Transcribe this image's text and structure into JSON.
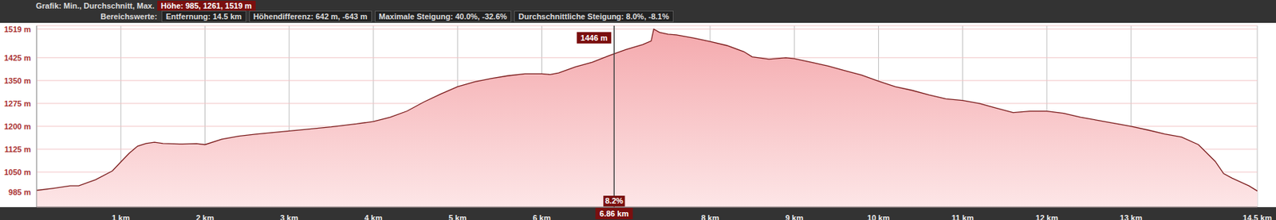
{
  "header": {
    "line1": [
      "Grafik: Min., Durchschnitt, Max.",
      "Höhe: 985, 1261, 1519 m"
    ],
    "line2": [
      "Bereichswerte:",
      "Entfernung: 14.5 km",
      "Höhendifferenz: 642 m, -643 m",
      "Maximale Steigung: 40.0%, -32.6%",
      "Durchschnittliche Steigung: 8.0%, -8.1%"
    ]
  },
  "chart_data": {
    "type": "area",
    "color": "#7a1a1a",
    "grid": true,
    "x": [
      0,
      0.2,
      0.4,
      0.5,
      0.7,
      0.9,
      1.0,
      1.1,
      1.2,
      1.3,
      1.4,
      1.5,
      1.7,
      1.9,
      2.0,
      2.2,
      2.4,
      2.6,
      3.0,
      3.2,
      3.5,
      3.8,
      4.0,
      4.2,
      4.4,
      4.6,
      4.8,
      5.0,
      5.2,
      5.4,
      5.6,
      5.8,
      6.0,
      6.1,
      6.2,
      6.4,
      6.6,
      6.8,
      7.0,
      7.2,
      7.3,
      7.33,
      7.4,
      7.5,
      7.6,
      7.8,
      8.0,
      8.2,
      8.4,
      8.5,
      8.7,
      8.9,
      9.0,
      9.2,
      9.4,
      9.6,
      9.8,
      10.0,
      10.2,
      10.4,
      10.6,
      10.8,
      11.0,
      11.2,
      11.4,
      11.6,
      11.8,
      12.0,
      12.2,
      12.4,
      12.6,
      12.8,
      13.0,
      13.2,
      13.4,
      13.6,
      13.8,
      14.0,
      14.1,
      14.2,
      14.4,
      14.5
    ],
    "values": [
      990,
      997,
      1005,
      1005,
      1025,
      1054,
      1083,
      1112,
      1135,
      1144,
      1148,
      1144,
      1142,
      1143,
      1140,
      1158,
      1168,
      1174,
      1185,
      1190,
      1198,
      1208,
      1216,
      1230,
      1250,
      1280,
      1306,
      1330,
      1346,
      1357,
      1366,
      1372,
      1372,
      1370,
      1375,
      1395,
      1410,
      1432,
      1452,
      1468,
      1480,
      1519,
      1508,
      1502,
      1500,
      1490,
      1478,
      1465,
      1445,
      1428,
      1420,
      1425,
      1422,
      1410,
      1398,
      1383,
      1368,
      1348,
      1330,
      1318,
      1303,
      1290,
      1285,
      1275,
      1260,
      1245,
      1250,
      1250,
      1243,
      1230,
      1220,
      1210,
      1200,
      1188,
      1175,
      1165,
      1140,
      1085,
      1045,
      1030,
      1005,
      988
    ],
    "xlim": [
      0,
      14.5
    ],
    "xticks": [
      {
        "value": 1,
        "label": "1 km"
      },
      {
        "value": 2,
        "label": "2 km"
      },
      {
        "value": 3,
        "label": "3 km"
      },
      {
        "value": 4,
        "label": "4 km"
      },
      {
        "value": 5,
        "label": "5 km"
      },
      {
        "value": 6,
        "label": "6 km"
      },
      {
        "value": 8,
        "label": "8 km"
      },
      {
        "value": 9,
        "label": "9 km"
      },
      {
        "value": 10,
        "label": "10 km"
      },
      {
        "value": 11,
        "label": "11 km"
      },
      {
        "value": 12,
        "label": "12 km"
      },
      {
        "value": 13,
        "label": "13 km"
      },
      {
        "value": 14.5,
        "label": "14.5 km"
      }
    ],
    "ylim": [
      935,
      1530
    ],
    "yticks": [
      {
        "value": 985,
        "label": "985 m"
      },
      {
        "value": 1050,
        "label": "1050 m"
      },
      {
        "value": 1125,
        "label": "1125 m"
      },
      {
        "value": 1200,
        "label": "1200 m"
      },
      {
        "value": 1275,
        "label": "1275 m"
      },
      {
        "value": 1350,
        "label": "1350 m"
      },
      {
        "value": 1425,
        "label": "1425 m"
      },
      {
        "value": 1519,
        "label": "1519 m"
      }
    ],
    "annotation": {
      "x": 6.86,
      "x_label": "6.86 km",
      "y": 1446,
      "y_label": "1446 m",
      "text": "8.2%"
    }
  }
}
